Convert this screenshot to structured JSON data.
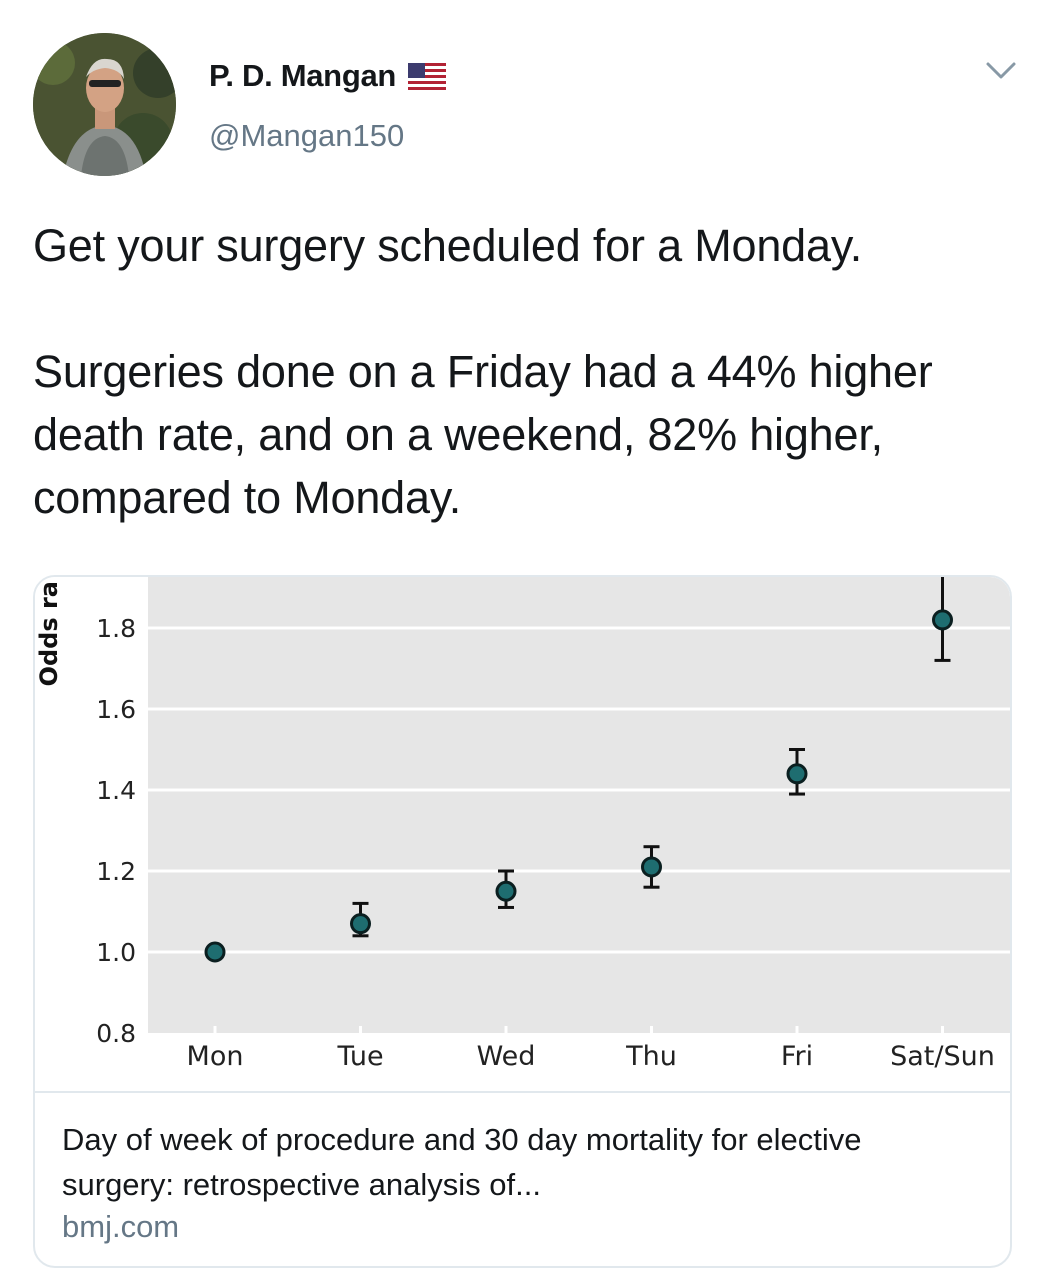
{
  "tweet": {
    "author_name": "P. D. Mangan",
    "handle": "@Mangan150",
    "flag_icon": "us-flag-icon",
    "menu_icon": "chevron-down-icon",
    "text_line1": "Get your surgery scheduled for a Monday.",
    "text_line2": "Surgeries done on a Friday had a 44% higher death rate, and on a weekend, 82% higher, compared to Monday."
  },
  "card": {
    "title": "Day of week of procedure and 30 day mortality for elective surgery: retrospective analysis of...",
    "domain": "bmj.com"
  },
  "chart_data": {
    "type": "scatter",
    "ylabel": "Odds ra",
    "categories": [
      "Mon",
      "Tue",
      "Wed",
      "Thu",
      "Fri",
      "Sat/Sun"
    ],
    "values": [
      1.0,
      1.07,
      1.15,
      1.21,
      1.44,
      1.82
    ],
    "ci_low": [
      1.0,
      1.04,
      1.11,
      1.16,
      1.39,
      1.72
    ],
    "ci_high": [
      1.0,
      1.12,
      1.2,
      1.26,
      1.5,
      1.93
    ],
    "ylim": [
      0.8,
      1.93
    ],
    "yticks": [
      0.8,
      1.0,
      1.2,
      1.4,
      1.6,
      1.8
    ],
    "ytick_labels": [
      "0.8",
      "1.0",
      "1.2",
      "1.4",
      "1.6",
      "1.8"
    ],
    "grid": true,
    "colors": {
      "background": "#e6e6e6",
      "grid": "#ffffff",
      "marker": "#1e6d70",
      "marker_edge": "#0b1f20"
    }
  }
}
